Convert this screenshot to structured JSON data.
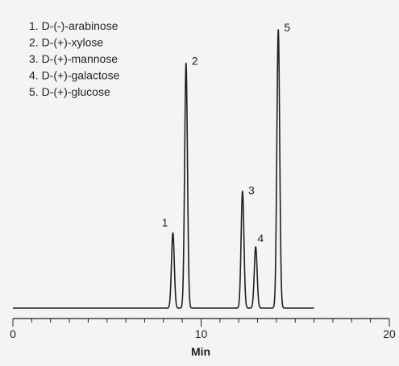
{
  "chart_data": {
    "type": "line",
    "title": "",
    "xlabel": "Min",
    "ylabel": "",
    "xlim": [
      0,
      20
    ],
    "x_major_ticks": [
      0,
      10,
      20
    ],
    "x_minor_step": 1,
    "legend_placement": "top-left",
    "legend": [
      "1. D-(-)-arabinose",
      "2. D-(+)-xylose",
      "3. D-(+)-mannose",
      "4. D-(+)-galactose",
      "5. D-(+)-glucose"
    ],
    "baseline_range_min": [
      0,
      16
    ],
    "series": [
      {
        "peaks": [
          {
            "label": "1",
            "time": 8.5,
            "height": 0.27
          },
          {
            "label": "2",
            "time": 9.2,
            "height": 0.88
          },
          {
            "label": "3",
            "time": 12.2,
            "height": 0.42
          },
          {
            "label": "4",
            "time": 12.9,
            "height": 0.22
          },
          {
            "label": "5",
            "time": 14.1,
            "height": 1.0
          }
        ]
      }
    ],
    "colors": {
      "trace": "#231f20",
      "background": "#f4f4f4"
    }
  }
}
